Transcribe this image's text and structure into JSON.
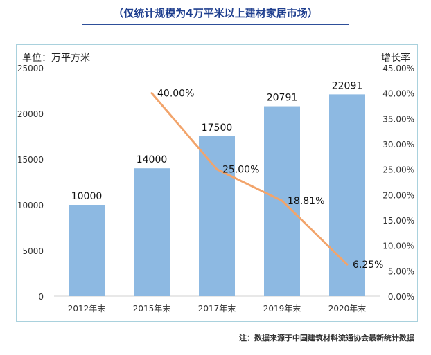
{
  "title": "（仅统计规模为4万平米以上建材家居市场）",
  "unit_label": "单位：万平方米",
  "right_axis_title": "增长率",
  "source_note": "注：数据来源于中国建筑材料流通协会最新统计数据",
  "colors": {
    "bar": "#8db9e2",
    "line": "#f2a46b",
    "title": "#1f3f8f",
    "frame": "#a9d1dd"
  },
  "chart_data": {
    "type": "bar",
    "title": "（仅统计规模为4万平米以上建材家居市场）",
    "categories": [
      "2012年末",
      "2015年末",
      "2017年末",
      "2019年末",
      "2020年末"
    ],
    "series": [
      {
        "type": "bar",
        "axis": "left",
        "values": [
          10000,
          14000,
          17500,
          20791,
          22091
        ],
        "data_labels": [
          "10000",
          "14000",
          "17500",
          "20791",
          "22091"
        ]
      },
      {
        "type": "line",
        "axis": "right",
        "values": [
          null,
          40.0,
          25.0,
          18.81,
          6.25
        ],
        "data_labels": [
          "",
          "40.00%",
          "25.00%",
          "18.81%",
          "6.25%"
        ]
      }
    ],
    "ylabel": "单位：万平方米",
    "ylim": [
      0,
      25000
    ],
    "yticks": [
      "0",
      "5000",
      "10000",
      "15000",
      "20000",
      "25000"
    ],
    "y2label": "增长率",
    "y2lim": [
      0,
      45
    ],
    "y2ticks": [
      "0.00%",
      "5.00%",
      "10.00%",
      "15.00%",
      "20.00%",
      "25.00%",
      "30.00%",
      "35.00%",
      "40.00%",
      "45.00%"
    ],
    "grid": false,
    "legend": "none"
  }
}
